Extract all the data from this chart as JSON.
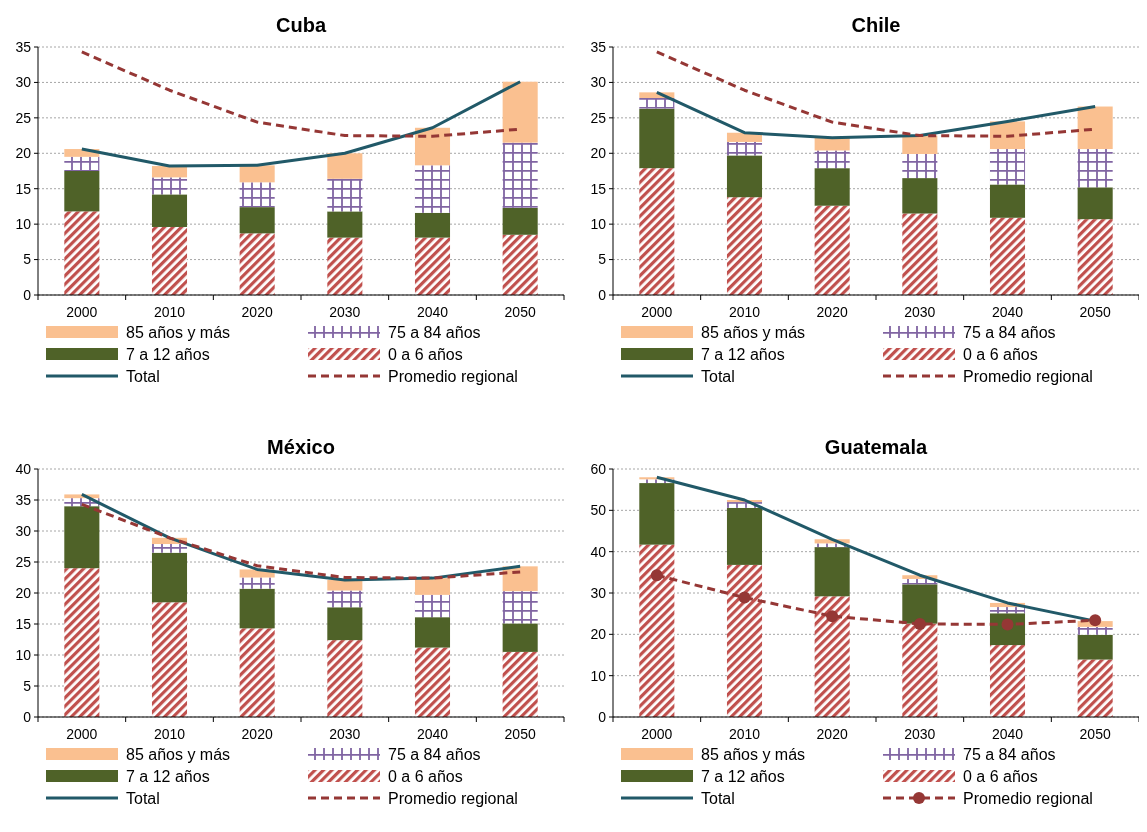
{
  "chart_data": [
    {
      "type": "bar",
      "title": "Cuba",
      "categories": [
        "2000",
        "2010",
        "2020",
        "2030",
        "2040",
        "2050"
      ],
      "stacked": true,
      "ylim": [
        0,
        35
      ],
      "yticks": [
        0,
        5,
        10,
        15,
        20,
        25,
        30,
        35
      ],
      "grid": "y",
      "legend": "bottom",
      "series": [
        {
          "name": "0 a 6 años",
          "color": "#c0504d",
          "values": [
            11.8,
            9.6,
            8.7,
            8.1,
            8.1,
            8.5
          ]
        },
        {
          "name": "7 a 12 años",
          "color": "#4f6228",
          "values": [
            5.7,
            4.6,
            3.7,
            3.7,
            3.5,
            3.8
          ]
        },
        {
          "name": "75 a 84 años",
          "color": "#8064a2",
          "values": [
            2.0,
            2.4,
            3.5,
            4.6,
            6.7,
            9.2
          ]
        },
        {
          "name": "85 años y más",
          "color": "#fac090",
          "values": [
            1.1,
            1.6,
            2.4,
            3.6,
            5.3,
            8.6
          ]
        },
        {
          "name": "Total",
          "type": "line",
          "color": "#215968",
          "line_style": "solid",
          "values": [
            20.6,
            18.2,
            18.3,
            20.0,
            23.6,
            30.1
          ]
        },
        {
          "name": "Promedio regional",
          "type": "line",
          "color": "#953735",
          "line_style": "dashed",
          "values": [
            34.3,
            28.9,
            24.4,
            22.5,
            22.4,
            23.4
          ]
        }
      ]
    },
    {
      "type": "bar",
      "title": "Chile",
      "categories": [
        "2000",
        "2010",
        "2020",
        "2030",
        "2040",
        "2050"
      ],
      "stacked": true,
      "ylim": [
        0,
        35
      ],
      "yticks": [
        0,
        5,
        10,
        15,
        20,
        25,
        30,
        35
      ],
      "grid": "y",
      "legend": "bottom",
      "series": [
        {
          "name": "0 a 6 años",
          "color": "#c0504d",
          "values": [
            17.9,
            13.8,
            12.6,
            11.5,
            10.9,
            10.7
          ]
        },
        {
          "name": "7 a 12 años",
          "color": "#4f6228",
          "values": [
            8.4,
            5.9,
            5.3,
            5.0,
            4.7,
            4.5
          ]
        },
        {
          "name": "75 a 84 años",
          "color": "#8064a2",
          "values": [
            1.5,
            1.9,
            2.5,
            3.4,
            5.0,
            5.4
          ]
        },
        {
          "name": "85 años y más",
          "color": "#fac090",
          "values": [
            0.8,
            1.3,
            1.8,
            2.6,
            3.9,
            6.0
          ]
        },
        {
          "name": "Total",
          "type": "line",
          "color": "#215968",
          "line_style": "solid",
          "values": [
            28.6,
            22.9,
            22.2,
            22.5,
            24.5,
            26.6
          ]
        },
        {
          "name": "Promedio regional",
          "type": "line",
          "color": "#953735",
          "line_style": "dashed",
          "values": [
            34.3,
            28.9,
            24.4,
            22.5,
            22.4,
            23.4
          ]
        }
      ]
    },
    {
      "type": "bar",
      "title": "México",
      "categories": [
        "2000",
        "2010",
        "2020",
        "2030",
        "2040",
        "2050"
      ],
      "stacked": true,
      "ylim": [
        0,
        40
      ],
      "yticks": [
        0,
        5,
        10,
        15,
        20,
        25,
        30,
        35,
        40
      ],
      "grid": "y",
      "legend": "bottom",
      "series": [
        {
          "name": "0 a 6 años",
          "color": "#c0504d",
          "values": [
            24.0,
            18.5,
            14.3,
            12.4,
            11.2,
            10.5
          ]
        },
        {
          "name": "7 a 12 años",
          "color": "#4f6228",
          "values": [
            10.0,
            8.0,
            6.4,
            5.3,
            4.9,
            4.6
          ]
        },
        {
          "name": "75 a 84 años",
          "color": "#8064a2",
          "values": [
            1.3,
            1.4,
            1.8,
            2.7,
            3.6,
            5.2
          ]
        },
        {
          "name": "85 años y más",
          "color": "#fac090",
          "values": [
            0.6,
            1.0,
            1.3,
            1.7,
            2.7,
            4.0
          ]
        },
        {
          "name": "Total",
          "type": "line",
          "color": "#215968",
          "line_style": "solid",
          "values": [
            35.9,
            28.9,
            23.8,
            22.1,
            22.4,
            24.3
          ]
        },
        {
          "name": "Promedio regional",
          "type": "line",
          "color": "#953735",
          "line_style": "dashed",
          "values": [
            34.3,
            28.9,
            24.4,
            22.5,
            22.4,
            23.4
          ]
        }
      ]
    },
    {
      "type": "bar",
      "title": "Guatemala",
      "categories": [
        "2000",
        "2010",
        "2020",
        "2030",
        "2040",
        "2050"
      ],
      "stacked": true,
      "ylim": [
        0,
        60
      ],
      "yticks": [
        0,
        10,
        20,
        30,
        40,
        50,
        60
      ],
      "grid": "y",
      "legend": "bottom",
      "series": [
        {
          "name": "0 a 6 años",
          "color": "#c0504d",
          "values": [
            41.7,
            36.8,
            29.2,
            22.6,
            17.4,
            13.9
          ]
        },
        {
          "name": "7 a 12 años",
          "color": "#4f6228",
          "values": [
            14.9,
            13.8,
            11.9,
            9.5,
            7.7,
            6.0
          ]
        },
        {
          "name": "75 a 84 años",
          "color": "#8064a2",
          "values": [
            0.9,
            1.4,
            0.9,
            1.3,
            1.5,
            1.9
          ]
        },
        {
          "name": "85 años y más",
          "color": "#fac090",
          "values": [
            0.5,
            0.5,
            1.0,
            0.9,
            1.0,
            1.4
          ]
        },
        {
          "name": "Total",
          "type": "line",
          "color": "#215968",
          "line_style": "solid",
          "values": [
            58.0,
            52.5,
            43.0,
            34.3,
            27.6,
            23.2
          ]
        },
        {
          "name": "Promedio regional",
          "type": "line",
          "color": "#953735",
          "line_style": "dashed",
          "marker": "circle",
          "values": [
            34.3,
            28.9,
            24.4,
            22.5,
            22.4,
            23.4
          ]
        }
      ]
    }
  ]
}
